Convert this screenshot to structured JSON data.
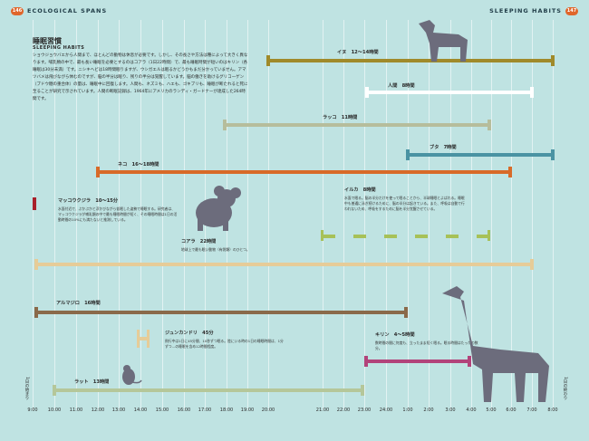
{
  "header": {
    "page_left": "146",
    "title_left": "ECOLOGICAL SPANS",
    "title_right": "SLEEPING HABITS",
    "page_right": "147"
  },
  "section": {
    "title_jp": "睡眠習慣",
    "title_en": "SLEEPING HABITS",
    "intro": "ショウジョウバエから人間まで、ほとんどの動物は休息が必要です。しかし、その長さや方法は種によって大きく異なります。哺乳類の中で、最も長い睡眠を必要とするのはコアラ（1日22時間）で、最も睡眠時間が短いのはキリン（各睡眠は30分未満）です。ニシキヘビは18時間眠りますが、ウシガエルは眠るかどうかもまだ分かっていません。アマツバメは飛びながら休むのですが、脳の半分は眠り、残りの半分は覚醒しています。脳の働きを助けるグリコーゲン（ブドウ糖の重合体）の量は、睡眠中に回復します。人間も、ネズミも、ハエも、ゴキブリも、睡眠が断たれると死に至ることが研究で示されています。人間の断眠記録は、1964年にアメリカのランディ・ガードナーが達成した264時間です。"
  },
  "colors": {
    "background": "#bfe3e2",
    "accent": "#e0662b",
    "dog": "#a08a2a",
    "human": "#ffffff",
    "otter": "#b6bd9c",
    "pig": "#4a93a3",
    "cat": "#d86a28",
    "dolphin": "#a7c158",
    "koala": "#e6cc98",
    "armadillo": "#8a6a4a",
    "giraffe": "#b2437a",
    "rat": "#b5c79a",
    "whale": "#a8202a",
    "silhouette": "#6c6c7c"
  },
  "animals": {
    "dog": {
      "label": "イヌ　12〜14時間"
    },
    "human": {
      "label": "人間　8時間"
    },
    "otter": {
      "label": "ラッコ　11時間"
    },
    "pig": {
      "label": "ブタ　7時間"
    },
    "cat": {
      "label": "ネコ　16〜18時間"
    },
    "whale": {
      "label": "マッコウクジラ　10〜15分",
      "note": "水面付近で、ぷかぷかと浮かびながら仮眠した姿勢で睡眠する。研究者は、マッコウクジラが哺乳類の中で最も睡眠時間が短く、その睡眠時間は1日の活動時間の10%にも満たないと推測している。"
    },
    "dolphin": {
      "label": "イルカ　8時間",
      "note": "水面で眠る。脳の半分だけを使って眠ることから、半球睡眠とよばれる。睡眠中も普通に泳ぎ続けるために、脳の半分は起きている。また、呼吸は自動で行われないため、呼吸をするために脳を半分覚醒させている。"
    },
    "koala": {
      "label": "コアラ　22時間",
      "note": "地球上で最も眠い動物（有袋類）のひとつ。"
    },
    "armadillo": {
      "label": "アルマジロ　16時間"
    },
    "dikdik": {
      "label": "ジュンカンドリ　45分",
      "note": "飛行中は1日に45分間、10秒ずつ眠る。陸にいる時の1日の睡眠時間は、1分ずつ…の睡眠を含め12時間程度。"
    },
    "giraffe": {
      "label": "キリン　4〜5時間",
      "note": "数時間の間に何度も、立ったまま短く眠る。眠る時間はたったの数分。"
    },
    "rat": {
      "label": "ラット　13時間"
    }
  },
  "axis": {
    "side_label": "1日の始まり",
    "side_label_right": "1日の終わり",
    "times": [
      "9:00",
      "10:00",
      "11:00",
      "12:00",
      "13:00",
      "14:00",
      "15:00",
      "16:00",
      "17:00",
      "18:00",
      "19:00",
      "20:00",
      "21:00",
      "22:00",
      "23:00",
      "24:00",
      "1:00",
      "2:00",
      "3:00",
      "4:00",
      "5:00",
      "6:00",
      "7:00",
      "8:00"
    ]
  }
}
